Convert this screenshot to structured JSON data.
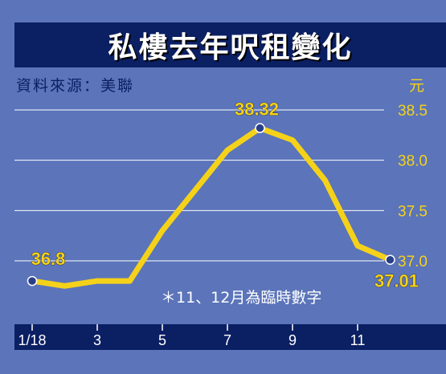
{
  "title": "私樓去年呎租變化",
  "source": "資料來源：美聯",
  "unit": "元",
  "note": "＊11、12月為臨時數字",
  "colors": {
    "background": "#5b74ba",
    "title_bar": "#0b1f63",
    "line": "#f5d21a",
    "axis_text": "#f5d21a",
    "grid": "#ffffff",
    "x_bar": "#0b1f63"
  },
  "chart_data": {
    "type": "line",
    "title": "私樓去年呎租變化",
    "xlabel": "",
    "ylabel": "元",
    "x": [
      "1",
      "2",
      "3",
      "4",
      "5",
      "6",
      "7",
      "8",
      "9",
      "10",
      "11",
      "12"
    ],
    "x_tick_labels": [
      "1/18",
      "3",
      "5",
      "7",
      "9",
      "11"
    ],
    "x_tick_months": [
      1,
      3,
      5,
      7,
      9,
      11
    ],
    "values": [
      36.8,
      36.75,
      36.8,
      36.8,
      37.3,
      37.7,
      38.1,
      38.32,
      38.2,
      37.8,
      37.15,
      37.01
    ],
    "y_ticks": [
      37.0,
      37.5,
      38.0,
      38.5
    ],
    "y_tick_labels": [
      "37.0",
      "37.5",
      "38.0",
      "38.5"
    ],
    "ylim": [
      36.5,
      38.5
    ],
    "annotations": [
      {
        "month": 1,
        "label": "36.8"
      },
      {
        "month": 8,
        "label": "38.32"
      },
      {
        "month": 12,
        "label": "37.01"
      }
    ],
    "marked_months": [
      1,
      8,
      12
    ],
    "grid": true
  }
}
